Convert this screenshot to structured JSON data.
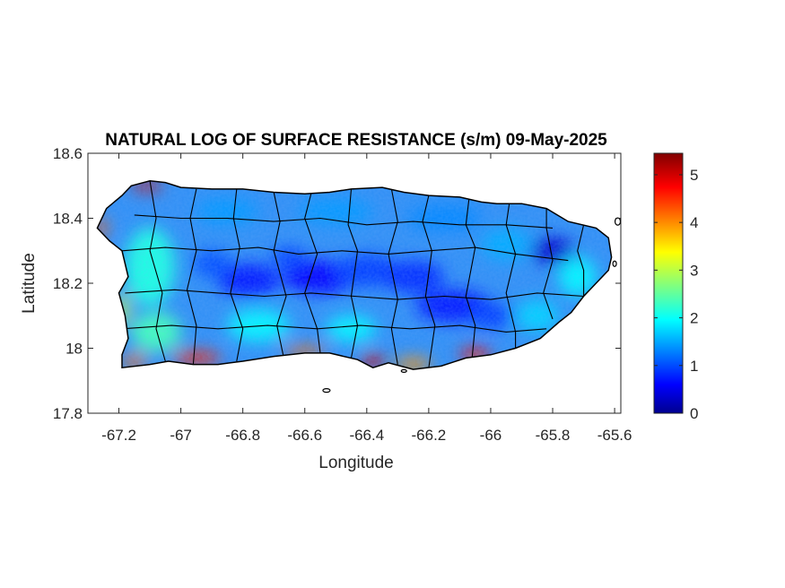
{
  "chart_data": {
    "type": "heatmap",
    "title": "NATURAL LOG OF SURFACE RESISTANCE (s/m) 09-May-2025",
    "xlabel": "Longitude",
    "ylabel": "Latitude",
    "xlim": [
      -67.3,
      -65.58
    ],
    "ylim": [
      17.8,
      18.6
    ],
    "xticks": [
      -67.2,
      -67,
      -66.8,
      -66.6,
      -66.4,
      -66.2,
      -66,
      -65.8,
      -65.6
    ],
    "xtick_labels": [
      "-67.2",
      "-67",
      "-66.8",
      "-66.6",
      "-66.4",
      "-66.2",
      "-66",
      "-65.8",
      "-65.6"
    ],
    "yticks": [
      17.8,
      18,
      18.2,
      18.4,
      18.6
    ],
    "ytick_labels": [
      "17.8",
      "18",
      "18.2",
      "18.4",
      "18.6"
    ],
    "colorbar": {
      "colormap": "jet",
      "range": [
        0,
        5.45
      ],
      "ticks": [
        0,
        1,
        2,
        3,
        4,
        5
      ],
      "tick_labels": [
        "0",
        "1",
        "2",
        "3",
        "4",
        "5"
      ]
    },
    "grid": false,
    "value_field_description_samples": [
      {
        "lon": -67.12,
        "lat": 18.5,
        "value": 5.0
      },
      {
        "lon": -67.27,
        "lat": 18.37,
        "value": 4.3
      },
      {
        "lon": -66.95,
        "lat": 17.97,
        "value": 4.6
      },
      {
        "lon": -66.38,
        "lat": 17.96,
        "value": 5.0
      },
      {
        "lon": -66.05,
        "lat": 17.98,
        "value": 4.7
      },
      {
        "lon": -66.55,
        "lat": 18.22,
        "value": 0.7
      },
      {
        "lon": -66.78,
        "lat": 18.21,
        "value": 0.8
      },
      {
        "lon": -65.8,
        "lat": 18.3,
        "value": 0.4
      },
      {
        "lon": -66.1,
        "lat": 18.12,
        "value": 0.8
      },
      {
        "lon": -66.6,
        "lat": 18.42,
        "value": 1.6
      },
      {
        "lon": -67.1,
        "lat": 18.15,
        "value": 2.2
      }
    ]
  }
}
